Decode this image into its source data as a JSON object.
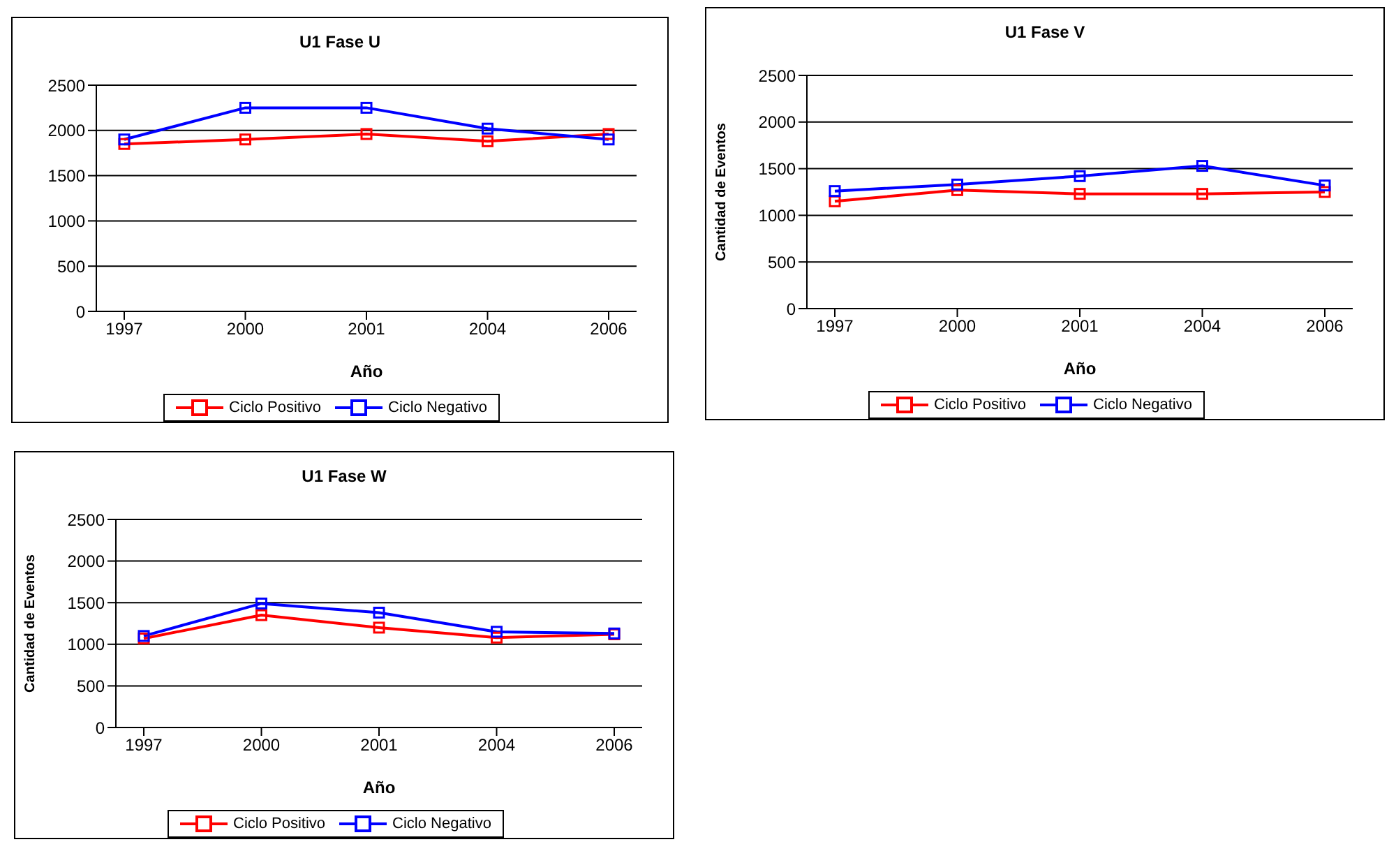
{
  "chart_data": [
    {
      "type": "line",
      "title": "U1 Fase U",
      "xlabel": "Año",
      "categories": [
        "1997",
        "2000",
        "2001",
        "2004",
        "2006"
      ],
      "series": [
        {
          "name": "Ciclo Positivo",
          "color": "#ff0000",
          "values": [
            1850,
            1900,
            1960,
            1880,
            1960
          ]
        },
        {
          "name": "Ciclo Negativo",
          "color": "#0000ff",
          "values": [
            1900,
            2250,
            2250,
            2020,
            1900
          ]
        }
      ],
      "ylim": [
        0,
        2500
      ],
      "yticks": [
        0,
        500,
        1000,
        1500,
        2000,
        2500
      ],
      "grid": "y",
      "legend": "bottom",
      "marker": "square",
      "line_style": "solid"
    },
    {
      "type": "line",
      "title": "U1 Fase V",
      "xlabel": "Año",
      "ylabel": "Cantidad de Eventos",
      "categories": [
        "1997",
        "2000",
        "2001",
        "2004",
        "2006"
      ],
      "series": [
        {
          "name": "Ciclo Positivo",
          "color": "#ff0000",
          "values": [
            1150,
            1270,
            1230,
            1230,
            1250
          ]
        },
        {
          "name": "Ciclo Negativo",
          "color": "#0000ff",
          "values": [
            1260,
            1330,
            1420,
            1530,
            1320
          ]
        }
      ],
      "ylim": [
        0,
        2500
      ],
      "yticks": [
        0,
        500,
        1000,
        1500,
        2000,
        2500
      ],
      "grid": "y",
      "legend": "bottom",
      "marker": "square",
      "line_style": "solid"
    },
    {
      "type": "line",
      "title": "U1 Fase W",
      "xlabel": "Año",
      "ylabel": "Cantidad de Eventos",
      "categories": [
        "1997",
        "2000",
        "2001",
        "2004",
        "2006"
      ],
      "series": [
        {
          "name": "Ciclo Positivo",
          "color": "#ff0000",
          "values": [
            1070,
            1350,
            1200,
            1080,
            1120
          ]
        },
        {
          "name": "Ciclo Negativo",
          "color": "#0000ff",
          "values": [
            1100,
            1490,
            1380,
            1150,
            1130
          ]
        }
      ],
      "ylim": [
        0,
        2500
      ],
      "yticks": [
        0,
        500,
        1000,
        1500,
        2000,
        2500
      ],
      "grid": "y",
      "legend": "bottom",
      "marker": "square",
      "line_style": "solid"
    }
  ]
}
